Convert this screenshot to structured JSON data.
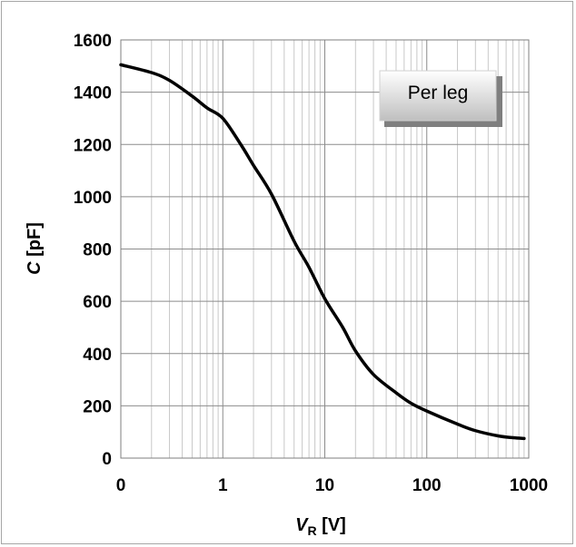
{
  "chart_data": {
    "type": "line",
    "x_scale": "log",
    "xlim": [
      0.1,
      1000
    ],
    "ylim": [
      0,
      1600
    ],
    "x_ticks": [
      {
        "value": 0.1,
        "label": "0"
      },
      {
        "value": 1,
        "label": "1"
      },
      {
        "value": 10,
        "label": "10"
      },
      {
        "value": 100,
        "label": "100"
      },
      {
        "value": 1000,
        "label": "1000"
      }
    ],
    "y_ticks": [
      0,
      200,
      400,
      600,
      800,
      1000,
      1200,
      1400,
      1600
    ],
    "xlabel_main": "V",
    "xlabel_sub": "R",
    "xlabel_unit": " [V]",
    "ylabel_main": "C",
    "ylabel_unit": " [pF]",
    "grid": true,
    "legend_box": {
      "text": "Per leg",
      "placement": "top-right"
    },
    "series": [
      {
        "color": "#000000",
        "x": [
          0.1,
          0.2,
          0.3,
          0.5,
          0.7,
          1,
          1.5,
          2,
          3,
          5,
          7,
          10,
          15,
          20,
          30,
          50,
          70,
          100,
          200,
          300,
          500,
          700,
          900
        ],
        "y": [
          1505,
          1475,
          1445,
          1385,
          1340,
          1300,
          1200,
          1120,
          1010,
          830,
          730,
          610,
          500,
          410,
          320,
          250,
          210,
          180,
          130,
          105,
          85,
          78,
          75
        ]
      }
    ]
  }
}
